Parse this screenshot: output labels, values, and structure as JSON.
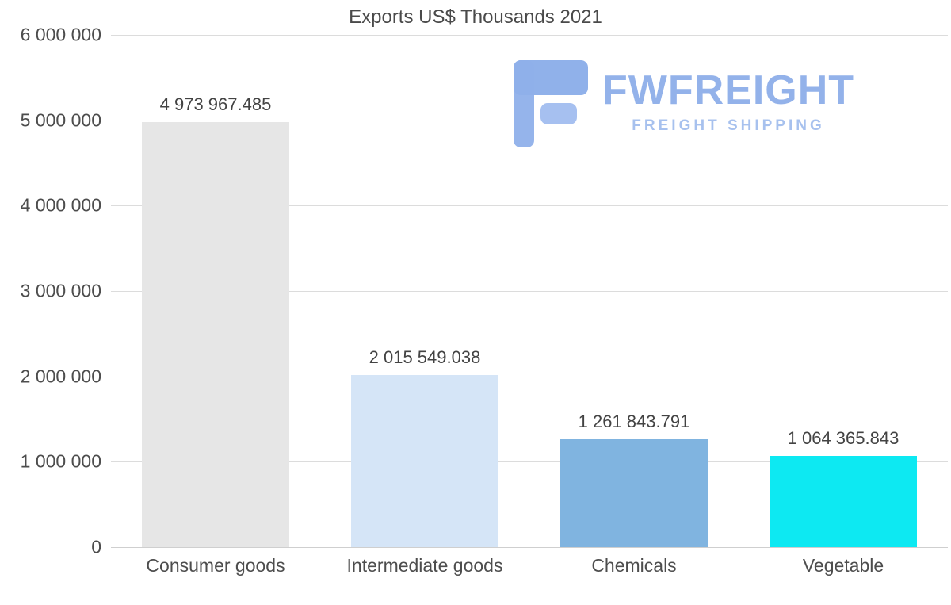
{
  "title": "Exports US$ Thousands 2021",
  "watermark": {
    "brand": "FWFREIGHT",
    "tagline": "FREIGHT SHIPPING",
    "brand_color": "#93b2ea"
  },
  "chart_data": {
    "type": "bar",
    "title": "Exports US$ Thousands 2021",
    "categories": [
      "Consumer goods",
      "Intermediate goods",
      "Chemicals",
      "Vegetable"
    ],
    "values": [
      4973967.485,
      2015549.038,
      1261843.791,
      1064365.843
    ],
    "value_labels": [
      "4 973 967.485",
      "2 015 549.038",
      "1 261 843.791",
      "1 064 365.843"
    ],
    "bar_colors": [
      "#e6e6e6",
      "#d5e5f7",
      "#80b4e0",
      "#0de9f2"
    ],
    "ytick_labels": [
      "6 000 000",
      "5 000 000",
      "4 000 000",
      "3 000 000",
      "2 000 000",
      "1 000 000",
      "0"
    ],
    "ylim": [
      0,
      6000000
    ],
    "xlabel": "",
    "ylabel": "",
    "grid": true,
    "legend": false
  }
}
